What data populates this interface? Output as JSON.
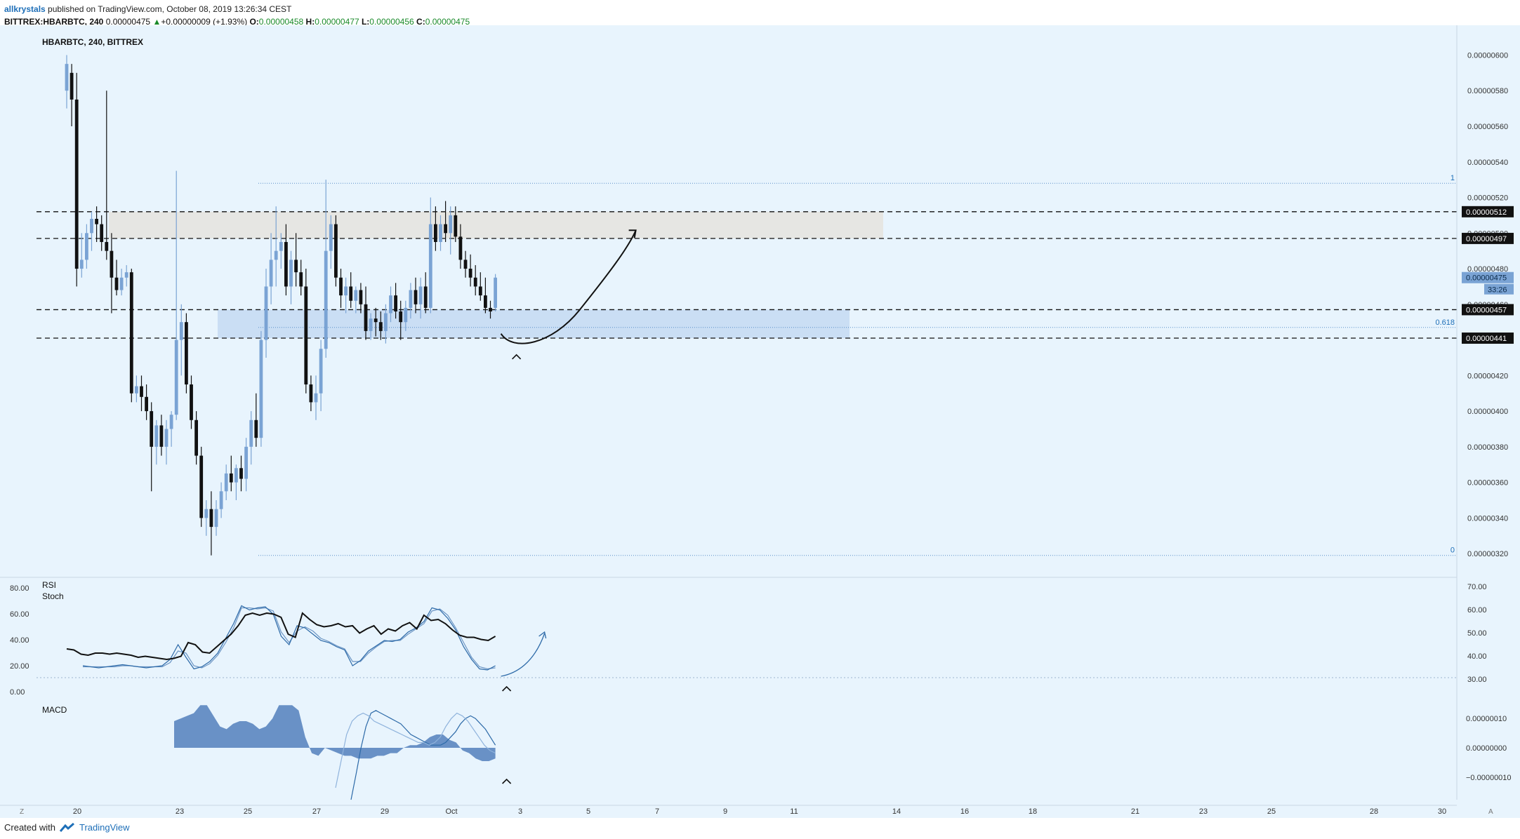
{
  "header": {
    "author": "allkrystals",
    "published": " published on TradingView.com, October 08, 2019 13:26:34 CEST",
    "symbol": "BITTREX:HBARBTC, 240",
    "last": "0.00000475",
    "change": "+0.00000009 (+1.93%)",
    "o_label": "O:",
    "o": "0.00000458",
    "h_label": "H:",
    "h": "0.00000477",
    "l_label": "L:",
    "l": "0.00000456",
    "c_label": "C:",
    "c": "0.00000475"
  },
  "footer": {
    "created": "Created with",
    "brand": "TradingView"
  },
  "colors": {
    "background": "#e8f4fd",
    "bull": "#7aa3d4",
    "bear": "#111111",
    "resistance_zone": "#e6e4e0",
    "support_zone": "#c6dcf3",
    "macd_hist": "#5b86c0",
    "accent": "#1e6fb8"
  },
  "chart_data": {
    "type": "candlestick",
    "title": "HBARBTC, 240, BITTREX",
    "price_axis": {
      "ticks": [
        "0.00000600",
        "0.00000580",
        "0.00000560",
        "0.00000540",
        "0.00000520",
        "0.00000500",
        "0.00000480",
        "0.00000460",
        "0.00000440",
        "0.00000420",
        "0.00000400",
        "0.00000380",
        "0.00000360",
        "0.00000340",
        "0.00000320"
      ],
      "range": [
        3.11e-06,
        6.12e-06
      ],
      "price_labels": [
        {
          "value": 5.12e-06,
          "text": "0.00000512",
          "style": "dark"
        },
        {
          "value": 4.97e-06,
          "text": "0.00000497",
          "style": "dark"
        },
        {
          "value": 4.75e-06,
          "text": "0.00000475",
          "style": "blue"
        },
        {
          "value": 4.57e-06,
          "text": "0.00000457",
          "style": "dark"
        },
        {
          "value": 4.41e-06,
          "text": "0.00000441",
          "style": "dark"
        }
      ],
      "countdown": "33:26"
    },
    "horizontal_lines": [
      5.12e-06,
      4.97e-06,
      4.57e-06,
      4.41e-06
    ],
    "zones": [
      {
        "name": "resistance",
        "from": 4.97e-06,
        "to": 5.12e-06
      },
      {
        "name": "support",
        "from": 4.41e-06,
        "to": 4.57e-06
      }
    ],
    "fibonacci": [
      {
        "level": "1",
        "value": 5.28e-06
      },
      {
        "level": "0.618",
        "value": 4.47e-06
      },
      {
        "level": "0",
        "value": 3.19e-06
      }
    ],
    "x_axis": {
      "labels": [
        "20",
        "23",
        "25",
        "27",
        "29",
        "Oct",
        "3",
        "5",
        "7",
        "9",
        "11",
        "14",
        "16",
        "18",
        "21",
        "23",
        "25",
        "28",
        "30"
      ]
    },
    "candles": [
      [
        5.8e-06,
        6e-06,
        5.7e-06,
        5.95e-06
      ],
      [
        5.9e-06,
        5.95e-06,
        5.6e-06,
        5.75e-06
      ],
      [
        5.75e-06,
        5.9e-06,
        4.7e-06,
        4.8e-06
      ],
      [
        4.8e-06,
        5e-06,
        4.75e-06,
        4.85e-06
      ],
      [
        4.85e-06,
        5.05e-06,
        4.8e-06,
        5e-06
      ],
      [
        5e-06,
        5.12e-06,
        4.9e-06,
        5.08e-06
      ],
      [
        5.08e-06,
        5.15e-06,
        4.95e-06,
        5.05e-06
      ],
      [
        5.05e-06,
        5.1e-06,
        4.9e-06,
        4.95e-06
      ],
      [
        4.95e-06,
        5.8e-06,
        4.85e-06,
        4.9e-06
      ],
      [
        4.9e-06,
        5e-06,
        4.55e-06,
        4.75e-06
      ],
      [
        4.75e-06,
        4.85e-06,
        4.65e-06,
        4.68e-06
      ],
      [
        4.68e-06,
        4.8e-06,
        4.65e-06,
        4.75e-06
      ],
      [
        4.75e-06,
        4.82e-06,
        4.7e-06,
        4.78e-06
      ],
      [
        4.78e-06,
        4.8e-06,
        4.05e-06,
        4.1e-06
      ],
      [
        4.1e-06,
        4.2e-06,
        4.05e-06,
        4.14e-06
      ],
      [
        4.14e-06,
        4.2e-06,
        4e-06,
        4.08e-06
      ],
      [
        4.08e-06,
        4.15e-06,
        3.95e-06,
        4e-06
      ],
      [
        4e-06,
        4.05e-06,
        3.55e-06,
        3.8e-06
      ],
      [
        3.8e-06,
        3.95e-06,
        3.7e-06,
        3.92e-06
      ],
      [
        3.92e-06,
        3.98e-06,
        3.75e-06,
        3.8e-06
      ],
      [
        3.8e-06,
        3.95e-06,
        3.7e-06,
        3.9e-06
      ],
      [
        3.9e-06,
        4e-06,
        3.8e-06,
        3.98e-06
      ],
      [
        3.98e-06,
        5.35e-06,
        3.95e-06,
        4.4e-06
      ],
      [
        4.4e-06,
        4.6e-06,
        4.2e-06,
        4.5e-06
      ],
      [
        4.5e-06,
        4.55e-06,
        4.1e-06,
        4.15e-06
      ],
      [
        4.15e-06,
        4.2e-06,
        3.9e-06,
        3.95e-06
      ],
      [
        3.95e-06,
        4e-06,
        3.7e-06,
        3.75e-06
      ],
      [
        3.75e-06,
        3.8e-06,
        3.35e-06,
        3.4e-06
      ],
      [
        3.4e-06,
        3.5e-06,
        3.3e-06,
        3.45e-06
      ],
      [
        3.45e-06,
        3.55e-06,
        3.19e-06,
        3.35e-06
      ],
      [
        3.35e-06,
        3.5e-06,
        3.3e-06,
        3.45e-06
      ],
      [
        3.45e-06,
        3.6e-06,
        3.4e-06,
        3.55e-06
      ],
      [
        3.55e-06,
        3.7e-06,
        3.5e-06,
        3.65e-06
      ],
      [
        3.65e-06,
        3.75e-06,
        3.55e-06,
        3.6e-06
      ],
      [
        3.6e-06,
        3.7e-06,
        3.5e-06,
        3.68e-06
      ],
      [
        3.68e-06,
        3.75e-06,
        3.55e-06,
        3.62e-06
      ],
      [
        3.62e-06,
        3.85e-06,
        3.55e-06,
        3.8e-06
      ],
      [
        3.8e-06,
        4e-06,
        3.7e-06,
        3.95e-06
      ],
      [
        3.95e-06,
        4.1e-06,
        3.8e-06,
        3.85e-06
      ],
      [
        3.85e-06,
        4.45e-06,
        3.8e-06,
        4.4e-06
      ],
      [
        4.4e-06,
        4.8e-06,
        4.3e-06,
        4.7e-06
      ],
      [
        4.7e-06,
        5e-06,
        4.6e-06,
        4.85e-06
      ],
      [
        4.85e-06,
        5.15e-06,
        4.7e-06,
        4.9e-06
      ],
      [
        4.9e-06,
        5e-06,
        4.8e-06,
        4.95e-06
      ],
      [
        4.95e-06,
        5.05e-06,
        4.65e-06,
        4.7e-06
      ],
      [
        4.7e-06,
        4.9e-06,
        4.6e-06,
        4.85e-06
      ],
      [
        4.85e-06,
        5e-06,
        4.7e-06,
        4.78e-06
      ],
      [
        4.78e-06,
        4.85e-06,
        4.65e-06,
        4.7e-06
      ],
      [
        4.7e-06,
        4.8e-06,
        4.1e-06,
        4.15e-06
      ],
      [
        4.15e-06,
        4.2e-06,
        4e-06,
        4.05e-06
      ],
      [
        4.05e-06,
        4.2e-06,
        3.95e-06,
        4.1e-06
      ],
      [
        4.1e-06,
        4.4e-06,
        4e-06,
        4.35e-06
      ],
      [
        4.35e-06,
        5.3e-06,
        4.3e-06,
        4.9e-06
      ],
      [
        4.9e-06,
        5.1e-06,
        4.8e-06,
        5.05e-06
      ],
      [
        5.05e-06,
        5.1e-06,
        4.7e-06,
        4.75e-06
      ],
      [
        4.75e-06,
        4.8e-06,
        4.58e-06,
        4.65e-06
      ],
      [
        4.65e-06,
        4.75e-06,
        4.55e-06,
        4.7e-06
      ],
      [
        4.7e-06,
        4.78e-06,
        4.58e-06,
        4.62e-06
      ],
      [
        4.62e-06,
        4.7e-06,
        4.55e-06,
        4.68e-06
      ],
      [
        4.68e-06,
        4.72e-06,
        4.55e-06,
        4.6e-06
      ],
      [
        4.6e-06,
        4.7e-06,
        4.4e-06,
        4.45e-06
      ],
      [
        4.45e-06,
        4.55e-06,
        4.4e-06,
        4.52e-06
      ],
      [
        4.52e-06,
        4.58e-06,
        4.42e-06,
        4.5e-06
      ],
      [
        4.5e-06,
        4.56e-06,
        4.4e-06,
        4.45e-06
      ],
      [
        4.45e-06,
        4.6e-06,
        4.38e-06,
        4.55e-06
      ],
      [
        4.55e-06,
        4.7e-06,
        4.5e-06,
        4.65e-06
      ],
      [
        4.65e-06,
        4.72e-06,
        4.52e-06,
        4.56e-06
      ],
      [
        4.56e-06,
        4.62e-06,
        4.4e-06,
        4.5e-06
      ],
      [
        4.5e-06,
        4.62e-06,
        4.45e-06,
        4.58e-06
      ],
      [
        4.58e-06,
        4.72e-06,
        4.52e-06,
        4.68e-06
      ],
      [
        4.68e-06,
        4.75e-06,
        4.55e-06,
        4.6e-06
      ],
      [
        4.6e-06,
        4.75e-06,
        4.52e-06,
        4.7e-06
      ],
      [
        4.7e-06,
        4.78e-06,
        4.55e-06,
        4.58e-06
      ],
      [
        4.58e-06,
        5.2e-06,
        4.55e-06,
        5.05e-06
      ],
      [
        5.05e-06,
        5.15e-06,
        4.9e-06,
        4.95e-06
      ],
      [
        4.95e-06,
        5.1e-06,
        4.9e-06,
        5.05e-06
      ],
      [
        5.05e-06,
        5.18e-06,
        4.95e-06,
        5e-06
      ],
      [
        5e-06,
        5.15e-06,
        4.88e-06,
        5.1e-06
      ],
      [
        5.1e-06,
        5.15e-06,
        4.95e-06,
        4.98e-06
      ],
      [
        4.98e-06,
        5.05e-06,
        4.8e-06,
        4.85e-06
      ],
      [
        4.85e-06,
        4.9e-06,
        4.75e-06,
        4.8e-06
      ],
      [
        4.8e-06,
        4.88e-06,
        4.7e-06,
        4.75e-06
      ],
      [
        4.75e-06,
        4.82e-06,
        4.65e-06,
        4.7e-06
      ],
      [
        4.7e-06,
        4.78e-06,
        4.62e-06,
        4.65e-06
      ],
      [
        4.65e-06,
        4.75e-06,
        4.55e-06,
        4.58e-06
      ],
      [
        4.58e-06,
        4.62e-06,
        4.52e-06,
        4.56e-06
      ],
      [
        4.58e-06,
        4.77e-06,
        4.56e-06,
        4.75e-06
      ]
    ],
    "projection": "curved arrow from support zone up to resistance zone",
    "rsi_stoch": {
      "labels": [
        "RSI",
        "Stoch"
      ],
      "left_ticks": [
        "80.00",
        "60.00",
        "40.00",
        "20.00",
        "0.00"
      ],
      "right_ticks": [
        "70.00",
        "60.00",
        "50.00",
        "40.00",
        "30.00"
      ],
      "rsi": [
        38,
        37,
        33,
        32,
        34,
        34,
        33,
        34,
        33,
        32,
        30,
        31,
        30,
        29,
        28,
        29,
        31,
        44,
        42,
        35,
        34,
        40,
        46,
        52,
        60,
        70,
        72,
        70,
        72,
        71,
        68,
        52,
        49,
        72,
        66,
        61,
        59,
        60,
        62,
        59,
        60,
        53,
        57,
        60,
        52,
        57,
        55,
        60,
        63,
        57,
        70,
        65,
        66,
        62,
        56,
        51,
        49,
        49,
        47,
        46,
        50
      ],
      "stoch_k": [
        22,
        21,
        20,
        21,
        22,
        23,
        22,
        21,
        20,
        21,
        22,
        28,
        42,
        30,
        19,
        21,
        26,
        34,
        48,
        62,
        79,
        75,
        77,
        78,
        71,
        50,
        42,
        60,
        58,
        52,
        46,
        44,
        40,
        37,
        22,
        27,
        36,
        41,
        46,
        45,
        47,
        54,
        58,
        64,
        77,
        75,
        67,
        56,
        40,
        28,
        19,
        18,
        22
      ],
      "stoch_d": [
        21,
        21,
        21,
        21,
        21,
        22,
        22,
        21,
        21,
        21,
        21,
        25,
        36,
        34,
        22,
        20,
        24,
        32,
        44,
        58,
        77,
        77,
        76,
        77,
        74,
        54,
        44,
        55,
        59,
        55,
        48,
        45,
        41,
        38,
        26,
        26,
        34,
        40,
        45,
        46,
        46,
        52,
        57,
        62,
        74,
        76,
        70,
        58,
        44,
        30,
        21,
        19,
        20
      ]
    },
    "macd": {
      "label": "MACD",
      "ticks": [
        "0.00000010",
        "0.00000000",
        "−0.00000010"
      ],
      "histogram": [
        0.1,
        0.11,
        0.12,
        0.13,
        0.16,
        0.16,
        0.12,
        0.08,
        0.07,
        0.09,
        0.1,
        0.1,
        0.09,
        0.07,
        0.08,
        0.11,
        0.16,
        0.16,
        0.16,
        0.14,
        0.04,
        -0.02,
        -0.03,
        0.0,
        -0.01,
        -0.02,
        -0.03,
        -0.03,
        -0.04,
        -0.04,
        -0.04,
        -0.03,
        -0.03,
        -0.02,
        -0.02,
        0.0,
        0.01,
        0.01,
        0.02,
        0.04,
        0.05,
        0.05,
        0.03,
        0.02,
        -0.01,
        -0.02,
        -0.04,
        -0.05,
        -0.05,
        -0.04
      ],
      "macd_line": [
        -0.15,
        -0.05,
        0.05,
        0.1,
        0.12,
        0.13,
        0.12,
        0.1,
        0.09,
        0.08,
        0.07,
        0.06,
        0.05,
        0.04,
        0.03,
        0.02,
        0.02,
        0.01,
        0.02,
        0.04,
        0.08,
        0.11,
        0.13,
        0.12,
        0.1,
        0.07,
        0.04,
        0.01,
        -0.01,
        -0.02
      ],
      "signal_line": [
        -0.2,
        -0.1,
        0.0,
        0.08,
        0.13,
        0.14,
        0.13,
        0.12,
        0.11,
        0.1,
        0.09,
        0.07,
        0.05,
        0.04,
        0.03,
        0.02,
        0.01,
        0.01,
        0.01,
        0.02,
        0.04,
        0.06,
        0.09,
        0.11,
        0.12,
        0.11,
        0.09,
        0.07,
        0.04,
        0.01
      ]
    }
  }
}
